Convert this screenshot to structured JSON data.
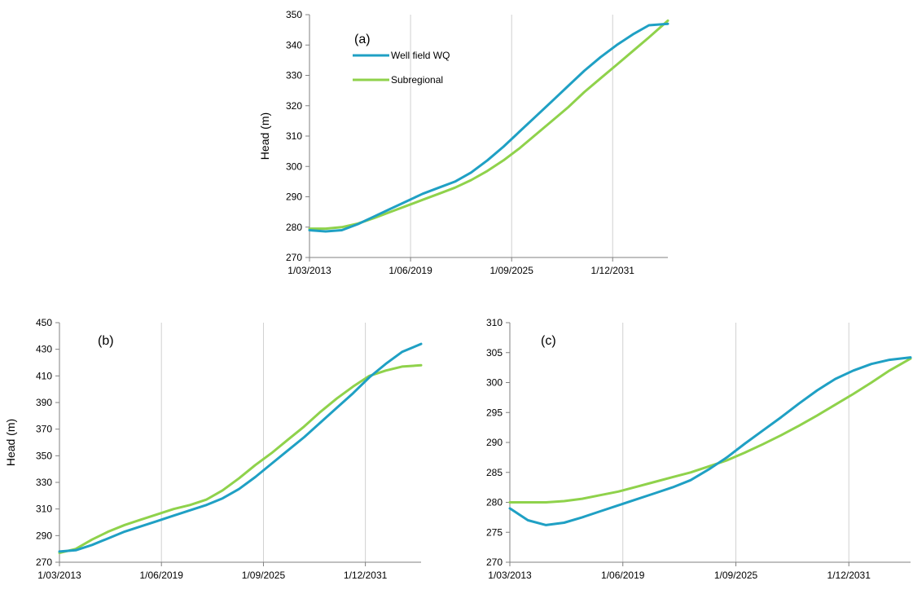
{
  "colors": {
    "well_field": "#1fa0c4",
    "subregional": "#8fd24b",
    "axis": "#808080",
    "grid": "#d0d0d0"
  },
  "chart_data": [
    {
      "type": "line",
      "panel_label": "(a)",
      "ylabel": "Head (m)",
      "xlim": [
        "2013-03-01",
        "2035-05-01"
      ],
      "x_ticks": [
        "1/03/2013",
        "1/06/2019",
        "1/09/2025",
        "1/12/2031"
      ],
      "ylim": [
        270,
        350
      ],
      "y_ticks": [
        270,
        280,
        290,
        300,
        310,
        320,
        330,
        340,
        350
      ],
      "grid": "vertical",
      "legend": {
        "position": "top-left",
        "entries": [
          "Well field WQ",
          "Subregional"
        ]
      },
      "series": [
        {
          "name": "Well field WQ",
          "color_key": "well_field",
          "x": [
            "2013-03-01",
            "2014-03-01",
            "2015-03-01",
            "2016-03-01",
            "2017-03-01",
            "2018-03-01",
            "2019-03-01",
            "2020-03-01",
            "2021-03-01",
            "2022-03-01",
            "2023-03-01",
            "2024-03-01",
            "2025-03-01",
            "2026-03-01",
            "2027-03-01",
            "2028-03-01",
            "2029-03-01",
            "2030-03-01",
            "2031-03-01",
            "2032-03-01",
            "2033-03-01",
            "2034-03-01",
            "2035-05-01"
          ],
          "y": [
            279,
            278.6,
            279,
            281,
            283.5,
            286,
            288.5,
            291,
            293,
            295,
            298,
            302,
            306.5,
            311.5,
            316.5,
            321.5,
            326.5,
            331.5,
            336,
            340,
            343.5,
            346.5,
            347
          ]
        },
        {
          "name": "Subregional",
          "color_key": "subregional",
          "x": [
            "2013-03-01",
            "2014-03-01",
            "2015-03-01",
            "2016-03-01",
            "2017-03-01",
            "2018-03-01",
            "2019-03-01",
            "2020-03-01",
            "2021-03-01",
            "2022-03-01",
            "2023-03-01",
            "2024-03-01",
            "2025-03-01",
            "2026-03-01",
            "2027-03-01",
            "2028-03-01",
            "2029-03-01",
            "2030-03-01",
            "2031-03-01",
            "2032-03-01",
            "2033-03-01",
            "2034-03-01",
            "2035-05-01"
          ],
          "y": [
            279.5,
            279.5,
            280,
            281.2,
            283,
            285,
            287,
            289,
            291,
            293,
            295.5,
            298.5,
            302,
            306,
            310.5,
            315,
            319.5,
            324.5,
            329,
            333.5,
            338,
            342.5,
            348
          ]
        }
      ]
    },
    {
      "type": "line",
      "panel_label": "(b)",
      "ylabel": "Head (m)",
      "xlim": [
        "2013-03-01",
        "2035-05-01"
      ],
      "x_ticks": [
        "1/03/2013",
        "1/06/2019",
        "1/09/2025",
        "1/12/2031"
      ],
      "ylim": [
        270,
        450
      ],
      "y_ticks": [
        270,
        290,
        310,
        330,
        350,
        370,
        390,
        410,
        430,
        450
      ],
      "grid": "vertical",
      "series": [
        {
          "name": "Well field WQ",
          "color_key": "well_field",
          "x": [
            "2013-03-01",
            "2014-03-01",
            "2015-03-01",
            "2016-03-01",
            "2017-03-01",
            "2018-03-01",
            "2019-03-01",
            "2020-03-01",
            "2021-03-01",
            "2022-03-01",
            "2023-03-01",
            "2024-03-01",
            "2025-03-01",
            "2026-03-01",
            "2027-03-01",
            "2028-03-01",
            "2029-03-01",
            "2030-03-01",
            "2031-03-01",
            "2032-03-01",
            "2033-03-01",
            "2034-03-01",
            "2035-05-01"
          ],
          "y": [
            278,
            279,
            283,
            288,
            293,
            297,
            301,
            305,
            309,
            313,
            318,
            325,
            334,
            344,
            354,
            364,
            375,
            386,
            397,
            409,
            419,
            428,
            434
          ]
        },
        {
          "name": "Subregional",
          "color_key": "subregional",
          "x": [
            "2013-03-01",
            "2014-03-01",
            "2015-03-01",
            "2016-03-01",
            "2017-03-01",
            "2018-03-01",
            "2019-03-01",
            "2020-03-01",
            "2021-03-01",
            "2022-03-01",
            "2023-03-01",
            "2024-03-01",
            "2025-03-01",
            "2026-03-01",
            "2027-03-01",
            "2028-03-01",
            "2029-03-01",
            "2030-03-01",
            "2031-03-01",
            "2032-03-01",
            "2033-03-01",
            "2034-03-01",
            "2035-05-01"
          ],
          "y": [
            277,
            280,
            287,
            293,
            298,
            302,
            306,
            310,
            313,
            317,
            324,
            333,
            343,
            352,
            362,
            372,
            383,
            393,
            402,
            410,
            414,
            417,
            418
          ]
        }
      ]
    },
    {
      "type": "line",
      "panel_label": "(c)",
      "ylabel": "",
      "xlim": [
        "2013-03-01",
        "2035-05-01"
      ],
      "x_ticks": [
        "1/03/2013",
        "1/06/2019",
        "1/09/2025",
        "1/12/2031"
      ],
      "ylim": [
        270,
        310
      ],
      "y_ticks": [
        270,
        275,
        280,
        285,
        290,
        295,
        300,
        305,
        310
      ],
      "grid": "vertical",
      "series": [
        {
          "name": "Well field WQ",
          "color_key": "well_field",
          "x": [
            "2013-03-01",
            "2014-03-01",
            "2015-03-01",
            "2016-03-01",
            "2017-03-01",
            "2018-03-01",
            "2019-03-01",
            "2020-03-01",
            "2021-03-01",
            "2022-03-01",
            "2023-03-01",
            "2024-03-01",
            "2025-03-01",
            "2026-03-01",
            "2027-03-01",
            "2028-03-01",
            "2029-03-01",
            "2030-03-01",
            "2031-03-01",
            "2032-03-01",
            "2033-03-01",
            "2034-03-01",
            "2035-05-01"
          ],
          "y": [
            279,
            277,
            276.2,
            276.6,
            277.5,
            278.5,
            279.5,
            280.5,
            281.5,
            282.5,
            283.7,
            285.5,
            287.5,
            289.8,
            292,
            294.2,
            296.5,
            298.7,
            300.6,
            302,
            303.1,
            303.8,
            304.2
          ]
        },
        {
          "name": "Subregional",
          "color_key": "subregional",
          "x": [
            "2013-03-01",
            "2014-03-01",
            "2015-03-01",
            "2016-03-01",
            "2017-03-01",
            "2018-03-01",
            "2019-03-01",
            "2020-03-01",
            "2021-03-01",
            "2022-03-01",
            "2023-03-01",
            "2024-03-01",
            "2025-03-01",
            "2026-03-01",
            "2027-03-01",
            "2028-03-01",
            "2029-03-01",
            "2030-03-01",
            "2031-03-01",
            "2032-03-01",
            "2033-03-01",
            "2034-03-01",
            "2035-05-01"
          ],
          "y": [
            280,
            280,
            280,
            280.2,
            280.6,
            281.2,
            281.8,
            282.6,
            283.4,
            284.2,
            285,
            286,
            287,
            288.3,
            289.7,
            291.2,
            292.8,
            294.5,
            296.3,
            298.1,
            300,
            302,
            304
          ]
        }
      ]
    }
  ]
}
